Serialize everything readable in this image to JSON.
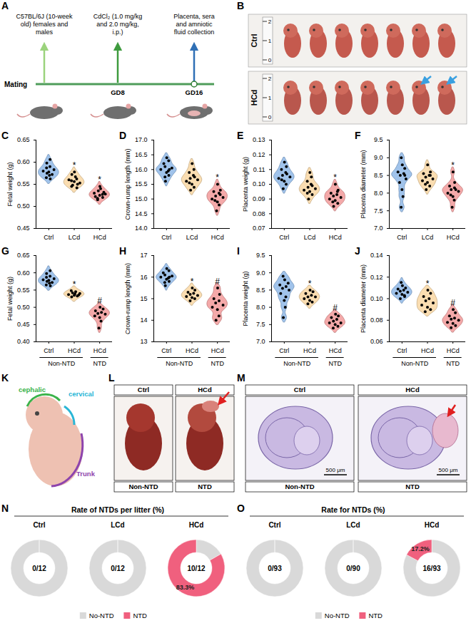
{
  "chart_data": [
    {
      "type": "violin",
      "panel": "C",
      "y_label": "Fetal weight (g)",
      "categories": [
        "Ctrl",
        "LCd",
        "HCd"
      ],
      "colors": [
        "#8fb8e8",
        "#f9d7a3",
        "#f29a9a"
      ],
      "values": [
        [
          0.565,
          0.572,
          0.578,
          0.58,
          0.583,
          0.575,
          0.59,
          0.598,
          0.606,
          0.57,
          0.587,
          0.562
        ],
        [
          0.545,
          0.55,
          0.556,
          0.56,
          0.553,
          0.548,
          0.567,
          0.572,
          0.542,
          0.578,
          0.558,
          0.562
        ],
        [
          0.515,
          0.52,
          0.525,
          0.53,
          0.528,
          0.535,
          0.54,
          0.522,
          0.532,
          0.545,
          0.518,
          0.527
        ]
      ],
      "significance": [
        null,
        "*",
        "*"
      ],
      "ylim": [
        0.45,
        0.65
      ],
      "yticks": [
        0.45,
        {
          "value": 0.5,
          "label": "0.50"
        },
        0.55,
        {
          "value": 0.6,
          "label": "0.60"
        },
        0.65
      ]
    },
    {
      "type": "violin",
      "panel": "D",
      "y_label": "Crown-rump length (mm)",
      "categories": [
        "Ctrl",
        "LCd",
        "HCd"
      ],
      "colors": [
        "#8fb8e8",
        "#f9d7a3",
        "#f29a9a"
      ],
      "values": [
        [
          15.6,
          15.8,
          15.9,
          16.0,
          16.05,
          16.1,
          15.95,
          16.2,
          16.3,
          16.4,
          15.75,
          16.0
        ],
        [
          15.3,
          15.4,
          15.5,
          15.6,
          15.65,
          15.7,
          15.8,
          15.9,
          16.0,
          16.2,
          15.55,
          15.75
        ],
        [
          14.6,
          14.8,
          14.9,
          15.0,
          15.05,
          15.1,
          15.2,
          15.25,
          15.3,
          15.5,
          14.95,
          15.15
        ]
      ],
      "significance": [
        null,
        null,
        "*"
      ],
      "ylim": [
        14,
        17
      ],
      "yticks": [
        {
          "value": 14,
          "label": "14.0"
        },
        14.5,
        {
          "value": 15,
          "label": "15.0"
        },
        15.5,
        {
          "value": 16,
          "label": "16.0"
        },
        16.5,
        {
          "value": 17,
          "label": "17.0"
        }
      ]
    },
    {
      "type": "violin",
      "panel": "E",
      "y_label": "Placenta weight (g)",
      "categories": [
        "Ctrl",
        "LCd",
        "HCd"
      ],
      "colors": [
        "#8fb8e8",
        "#f9d7a3",
        "#f29a9a"
      ],
      "values": [
        [
          0.097,
          0.1,
          0.102,
          0.104,
          0.105,
          0.106,
          0.108,
          0.11,
          0.112,
          0.115,
          0.103,
          0.107
        ],
        [
          0.09,
          0.093,
          0.095,
          0.096,
          0.097,
          0.098,
          0.1,
          0.102,
          0.105,
          0.108,
          0.094,
          0.099
        ],
        [
          0.085,
          0.087,
          0.089,
          0.09,
          0.091,
          0.092,
          0.093,
          0.094,
          0.096,
          0.1,
          0.088,
          0.095
        ]
      ],
      "significance": [
        null,
        null,
        "*"
      ],
      "ylim": [
        0.07,
        0.13
      ],
      "yticks": [
        0.07,
        0.08,
        0.09,
        {
          "value": 0.1,
          "label": "0.10"
        },
        0.11,
        0.12,
        0.13
      ]
    },
    {
      "type": "violin",
      "panel": "F",
      "y_label": "Placenta diameter (mm)",
      "categories": [
        "Ctrl",
        "LCd",
        "HCd"
      ],
      "colors": [
        "#8fb8e8",
        "#f9d7a3",
        "#f29a9a"
      ],
      "values": [
        [
          7.6,
          7.9,
          8.1,
          8.3,
          8.4,
          8.5,
          8.55,
          8.6,
          8.7,
          8.8,
          9.0,
          8.5
        ],
        [
          8.1,
          8.2,
          8.3,
          8.35,
          8.4,
          8.45,
          8.5,
          8.55,
          8.6,
          8.8,
          8.25,
          8.5
        ],
        [
          7.6,
          7.8,
          7.9,
          8.0,
          8.05,
          8.1,
          8.15,
          8.2,
          8.3,
          8.6,
          7.95,
          8.1
        ]
      ],
      "significance": [
        null,
        null,
        "*"
      ],
      "ylim": [
        7,
        9.5
      ],
      "yticks": [
        {
          "value": 7,
          "label": "7.0"
        },
        7.5,
        {
          "value": 8,
          "label": "8.0"
        },
        8.5,
        {
          "value": 9,
          "label": "9.0"
        },
        9.5
      ]
    },
    {
      "type": "violin",
      "panel": "G",
      "y_label": "Fetal weight (g)",
      "categories": [
        "Ctrl",
        "HCd",
        "HCd"
      ],
      "colors": [
        "#8fb8e8",
        "#f9d7a3",
        "#f29a9a"
      ],
      "values": [
        [
          0.565,
          0.572,
          0.578,
          0.58,
          0.583,
          0.575,
          0.59,
          0.598,
          0.606,
          0.57,
          0.587,
          0.562
        ],
        [
          0.53,
          0.533,
          0.535,
          0.537,
          0.54,
          0.542,
          0.545,
          0.548,
          0.536,
          0.539
        ],
        [
          0.44,
          0.46,
          0.47,
          0.475,
          0.48,
          0.482,
          0.485,
          0.49,
          0.495,
          0.5
        ]
      ],
      "significance": [
        null,
        "*",
        "#"
      ],
      "groups": [
        {
          "name": "Non-NTD",
          "span": [
            0,
            1
          ]
        },
        {
          "name": "NTD",
          "span": [
            2,
            2
          ]
        }
      ],
      "ylim": [
        0.4,
        0.65
      ],
      "yticks": [
        {
          "value": 0.4,
          "label": "0.40"
        },
        0.45,
        {
          "value": 0.5,
          "label": "0.50"
        },
        0.55,
        {
          "value": 0.6,
          "label": "0.60"
        },
        0.65
      ]
    },
    {
      "type": "violin",
      "panel": "H",
      "y_label": "Crown-rump length (mm)",
      "categories": [
        "Ctrl",
        "HCd",
        "HCd"
      ],
      "colors": [
        "#8fb8e8",
        "#f9d7a3",
        "#f29a9a"
      ],
      "values": [
        [
          15.6,
          15.8,
          15.9,
          16.0,
          16.05,
          16.1,
          15.95,
          16.2,
          16.3,
          16.4,
          15.75,
          16.0
        ],
        [
          14.9,
          15.0,
          15.05,
          15.1,
          15.15,
          15.2,
          15.25,
          15.3,
          15.4,
          15.5
        ],
        [
          14.0,
          14.2,
          14.5,
          14.6,
          14.7,
          14.8,
          14.9,
          15.0,
          15.2,
          15.5
        ]
      ],
      "significance": [
        null,
        "*",
        "#"
      ],
      "groups": [
        {
          "name": "Non-NTD",
          "span": [
            0,
            1
          ]
        },
        {
          "name": "NTD",
          "span": [
            2,
            2
          ]
        }
      ],
      "ylim": [
        13,
        17
      ],
      "yticks": [
        13,
        14,
        15,
        16,
        17
      ]
    },
    {
      "type": "violin",
      "panel": "I",
      "y_label": "Placenta weight (g)",
      "categories": [
        "Ctrl",
        "HCd",
        "HCd"
      ],
      "colors": [
        "#8fb8e8",
        "#f9d7a3",
        "#f29a9a"
      ],
      "values": [
        [
          7.7,
          8.0,
          8.2,
          8.4,
          8.5,
          8.55,
          8.6,
          8.65,
          8.7,
          8.8,
          8.9,
          8.3
        ],
        [
          8.1,
          8.15,
          8.2,
          8.25,
          8.3,
          8.3,
          8.35,
          8.4,
          8.45,
          8.5
        ],
        [
          7.4,
          7.45,
          7.5,
          7.55,
          7.55,
          7.6,
          7.65,
          7.7,
          7.75,
          7.8
        ]
      ],
      "significance": [
        null,
        "*",
        "#"
      ],
      "groups": [
        {
          "name": "Non-NTD",
          "span": [
            0,
            1
          ]
        },
        {
          "name": "NTD",
          "span": [
            2,
            2
          ]
        }
      ],
      "ylim": [
        7,
        9.5
      ],
      "yticks": [
        {
          "value": 7,
          "label": "7.0"
        },
        7.5,
        {
          "value": 8,
          "label": "8.0"
        },
        8.5,
        {
          "value": 9,
          "label": "9.0"
        },
        9.5
      ]
    },
    {
      "type": "violin",
      "panel": "J",
      "y_label": "Placenta diameter (mm)",
      "categories": [
        "Ctrl",
        "HCd",
        "HCd"
      ],
      "colors": [
        "#8fb8e8",
        "#f9d7a3",
        "#f29a9a"
      ],
      "values": [
        [
          0.1,
          0.102,
          0.104,
          0.105,
          0.106,
          0.107,
          0.108,
          0.109,
          0.11,
          0.112,
          0.115,
          0.103
        ],
        [
          0.088,
          0.09,
          0.092,
          0.094,
          0.096,
          0.098,
          0.1,
          0.102,
          0.105,
          0.108
        ],
        [
          0.073,
          0.075,
          0.077,
          0.078,
          0.08,
          0.081,
          0.082,
          0.084,
          0.087,
          0.09
        ]
      ],
      "significance": [
        null,
        "*",
        "#"
      ],
      "groups": [
        {
          "name": "Non-NTD",
          "span": [
            0,
            1
          ]
        },
        {
          "name": "NTD",
          "span": [
            2,
            2
          ]
        }
      ],
      "ylim": [
        0.06,
        0.14
      ],
      "yticks": [
        0.06,
        0.08,
        {
          "value": 0.1,
          "label": "0.10"
        },
        0.12,
        0.14
      ]
    },
    {
      "type": "pie",
      "panel": "N",
      "title": "Rate of NTDs per litter (%)",
      "categories": [
        "No-NTD",
        "NTD"
      ],
      "colors": [
        "#d9d9d9",
        "#f0607e"
      ],
      "legend": "bottom",
      "data_labels": true,
      "pies": [
        {
          "name": "Ctrl",
          "values": [
            100,
            0
          ],
          "value_labels": [
            null,
            null
          ],
          "center_label": "0/12"
        },
        {
          "name": "LCd",
          "values": [
            100,
            0
          ],
          "value_labels": [
            null,
            null
          ],
          "center_label": "0/12"
        },
        {
          "name": "HCd",
          "values": [
            16.7,
            83.3
          ],
          "value_labels": [
            null,
            "83.3%"
          ],
          "center_label": "10/12"
        }
      ]
    },
    {
      "type": "pie",
      "panel": "O",
      "title": "Rate for NTDs (%)",
      "categories": [
        "No-NTD",
        "NTD"
      ],
      "colors": [
        "#d9d9d9",
        "#f0607e"
      ],
      "legend": "bottom",
      "data_labels": true,
      "pies": [
        {
          "name": "Ctrl",
          "values": [
            100,
            0
          ],
          "value_labels": [
            null,
            null
          ],
          "center_label": "0/93"
        },
        {
          "name": "LCd",
          "values": [
            100,
            0
          ],
          "value_labels": [
            null,
            null
          ],
          "center_label": "0/90"
        },
        {
          "name": "HCd",
          "values": [
            82.8,
            17.2
          ],
          "value_labels": [
            null,
            "17.2%"
          ],
          "center_label": "16/93"
        }
      ]
    }
  ],
  "figure": {
    "A": {
      "panel": "A",
      "timeline_label": "Mating",
      "steps": [
        {
          "label": "C57BL/6J (10-week old) females and males",
          "time": null
        },
        {
          "label": "CdCl₂ (1.0 mg/kg and 2.0 mg/kg, i.p.)",
          "time": "GD8"
        },
        {
          "label": "Placenta, sera and amniotic fluid collection",
          "time": "GD16"
        }
      ]
    },
    "B": {
      "panel": "B",
      "rows": [
        "Ctrl",
        "HCd"
      ],
      "ruler_labels": [
        "0",
        "1",
        "2"
      ]
    },
    "K": {
      "panel": "K",
      "regions": [
        "cephalic",
        "cervical",
        "Trunk"
      ]
    },
    "L": {
      "panel": "L",
      "columns": [
        {
          "group": "Ctrl",
          "phenotype": "Non-NTD"
        },
        {
          "group": "HCd",
          "phenotype": "NTD"
        }
      ]
    },
    "M": {
      "panel": "M",
      "columns": [
        {
          "group": "Ctrl",
          "phenotype": "Non-NTD"
        },
        {
          "group": "HCd",
          "phenotype": "NTD"
        }
      ],
      "scale_bar": "500 μm"
    }
  }
}
